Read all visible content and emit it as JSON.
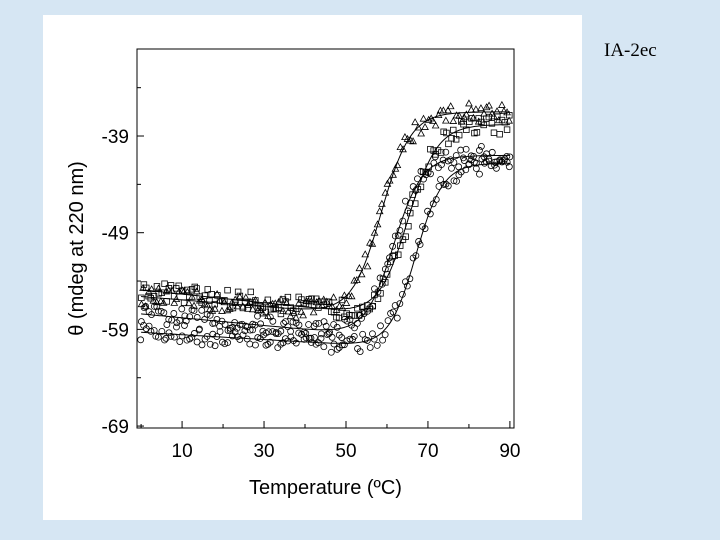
{
  "slide": {
    "label": "IA-2ec"
  },
  "chart_data": {
    "type": "scatter",
    "title": "",
    "xlabel": "Temperature (ºC)",
    "ylabel": "θ (mdeg at 220 nm)",
    "xlim": [
      -1,
      91
    ],
    "ylim": [
      -69.2,
      -30
    ],
    "xticks": [
      10,
      30,
      50,
      70,
      90
    ],
    "yticks": [
      -39,
      -49,
      -59,
      -69
    ],
    "x_tick_labels": [
      "10",
      "30",
      "50",
      "70",
      "90"
    ],
    "y_tick_labels": [
      "-39",
      "-49",
      "-59",
      "-69"
    ],
    "grid": false,
    "legend": "none",
    "series": [
      {
        "name": "triangles",
        "marker": "triangle",
        "fit": "sigmoid",
        "low": -56.3,
        "high": -36.5,
        "tm": 58.5,
        "width": 3.6,
        "slope": -0.035
      },
      {
        "name": "squares",
        "marker": "square",
        "fit": "sigmoid",
        "low": -55.8,
        "high": -37.8,
        "tm": 65.0,
        "width": 3.6,
        "slope": -0.045
      },
      {
        "name": "circles-upper",
        "marker": "circle",
        "fit": "sigmoid",
        "low": -58.2,
        "high": -41.0,
        "tm": 61.5,
        "width": 3.5,
        "slope": -0.04
      },
      {
        "name": "circles-lower",
        "marker": "circle",
        "fit": "sigmoid",
        "low": -59.8,
        "high": -41.8,
        "tm": 67.0,
        "width": 3.3,
        "slope": -0.025
      }
    ]
  }
}
